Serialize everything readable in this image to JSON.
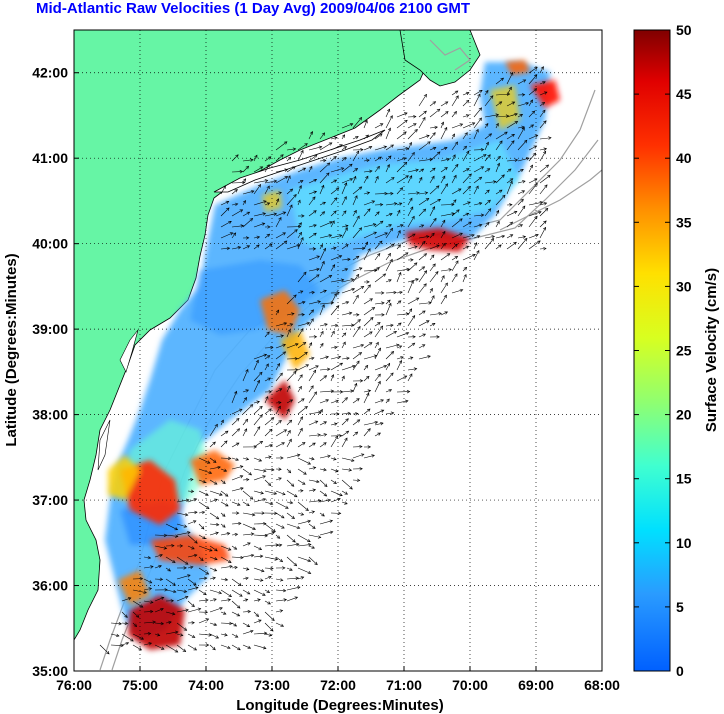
{
  "title": "Mid-Atlantic Raw Velocities (1 Day Avg) 2009/04/06 2100 GMT",
  "map": {
    "xlabel": "Longitude (Degrees:Minutes)",
    "ylabel": "Latitude (Degrees:Minutes)",
    "lon_range": [
      -76,
      -68
    ],
    "lat_range": [
      35,
      42.5
    ],
    "x_ticks": [
      "76:00",
      "75:00",
      "74:00",
      "73:00",
      "72:00",
      "71:00",
      "70:00",
      "69:00",
      "68:00"
    ],
    "y_ticks": [
      "35:00",
      "36:00",
      "37:00",
      "38:00",
      "39:00",
      "40:00",
      "41:00",
      "42:00"
    ],
    "grid": "dotted",
    "land_color": "#66f5a5",
    "coastline_color": "#000000",
    "bathymetry_color": "#a0a0a0"
  },
  "colorbar": {
    "label": "Surface Velocity (cm/s)",
    "range": [
      0,
      50
    ],
    "ticks": [
      "0",
      "5",
      "10",
      "15",
      "20",
      "25",
      "30",
      "35",
      "40",
      "45",
      "50"
    ],
    "colormap": "jet"
  }
}
